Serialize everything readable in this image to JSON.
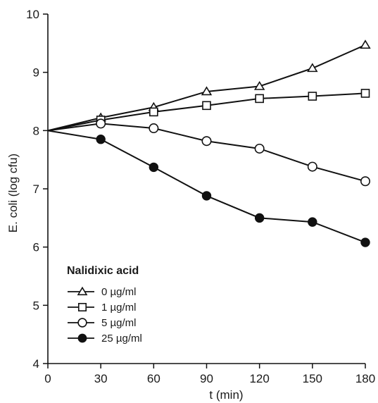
{
  "chart_data": {
    "type": "line",
    "title": "",
    "xlabel": "t (min)",
    "ylabel": "E. coli (log cfu)",
    "x": [
      0,
      30,
      60,
      90,
      120,
      150,
      180
    ],
    "xlim": [
      0,
      180
    ],
    "ylim": [
      4,
      10
    ],
    "xticks": [
      "0",
      "30",
      "60",
      "90",
      "120",
      "150",
      "180"
    ],
    "yticks": [
      "4",
      "5",
      "6",
      "7",
      "8",
      "9",
      "10"
    ],
    "grid": false,
    "legend": {
      "title": "Nalidixic acid",
      "placement": "bottom-left"
    },
    "series": [
      {
        "name": "0 µg/ml",
        "marker": "triangle-open",
        "values": [
          8.0,
          8.22,
          8.4,
          8.67,
          8.76,
          9.07,
          9.47
        ]
      },
      {
        "name": "1 µg/ml",
        "marker": "square-open",
        "values": [
          8.0,
          8.18,
          8.32,
          8.43,
          8.55,
          8.59,
          8.64
        ]
      },
      {
        "name": "5 µg/ml",
        "marker": "circle-open",
        "values": [
          8.0,
          8.12,
          8.04,
          7.82,
          7.69,
          7.38,
          7.13
        ]
      },
      {
        "name": "25 µg/ml",
        "marker": "circle-filled",
        "values": [
          8.0,
          7.85,
          7.37,
          6.88,
          6.5,
          6.43,
          6.08
        ]
      }
    ]
  }
}
